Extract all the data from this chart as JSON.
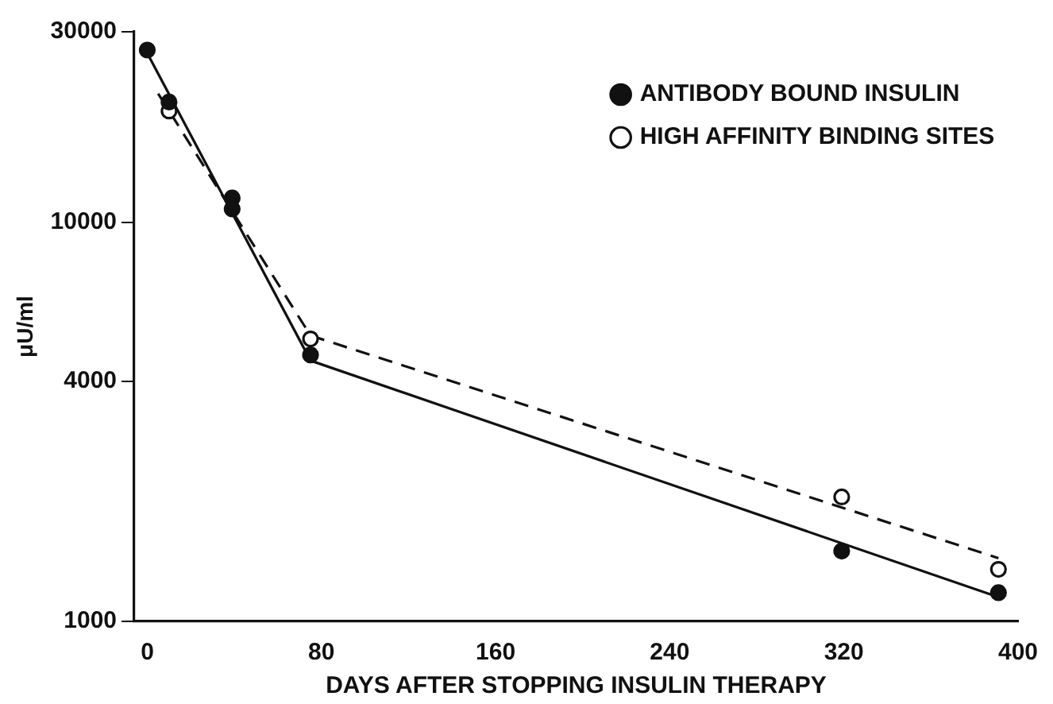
{
  "chart_data": {
    "type": "scatter",
    "xlabel": "DAYS AFTER STOPPING INSULIN THERAPY",
    "ylabel": "μU/ml",
    "log": "y",
    "grid": false,
    "legend": "top right",
    "marker": "circle",
    "xlim": [
      -6,
      400
    ],
    "xticks": [
      0,
      80,
      160,
      240,
      320,
      400
    ],
    "ylim": [
      1000,
      30000
    ],
    "yticks": [
      1000,
      4000,
      10000,
      30000
    ],
    "series": [
      {
        "name": "ANTIBODY BOUND INSULIN",
        "color": "#111111",
        "x": [
          0,
          10,
          39,
          39,
          75,
          319,
          391
        ],
        "values": [
          27000,
          20000,
          11500,
          10800,
          4650,
          1500,
          1180
        ]
      },
      {
        "name": "HIGH AFFINITY BINDING SITES",
        "color": "#ffffff",
        "x": [
          10,
          75,
          319,
          391
        ],
        "values": [
          19000,
          5100,
          2050,
          1350
        ]
      },
      {
        "type": "line",
        "marker": "none",
        "color": "#111111",
        "line_style": "solid",
        "x": [
          0,
          75,
          391
        ],
        "values": [
          26500,
          4500,
          1150
        ]
      },
      {
        "type": "line",
        "marker": "none",
        "color": "#111111",
        "line_style": "dashed",
        "x": [
          5,
          75,
          391
        ],
        "values": [
          21000,
          5200,
          1440
        ]
      }
    ]
  }
}
